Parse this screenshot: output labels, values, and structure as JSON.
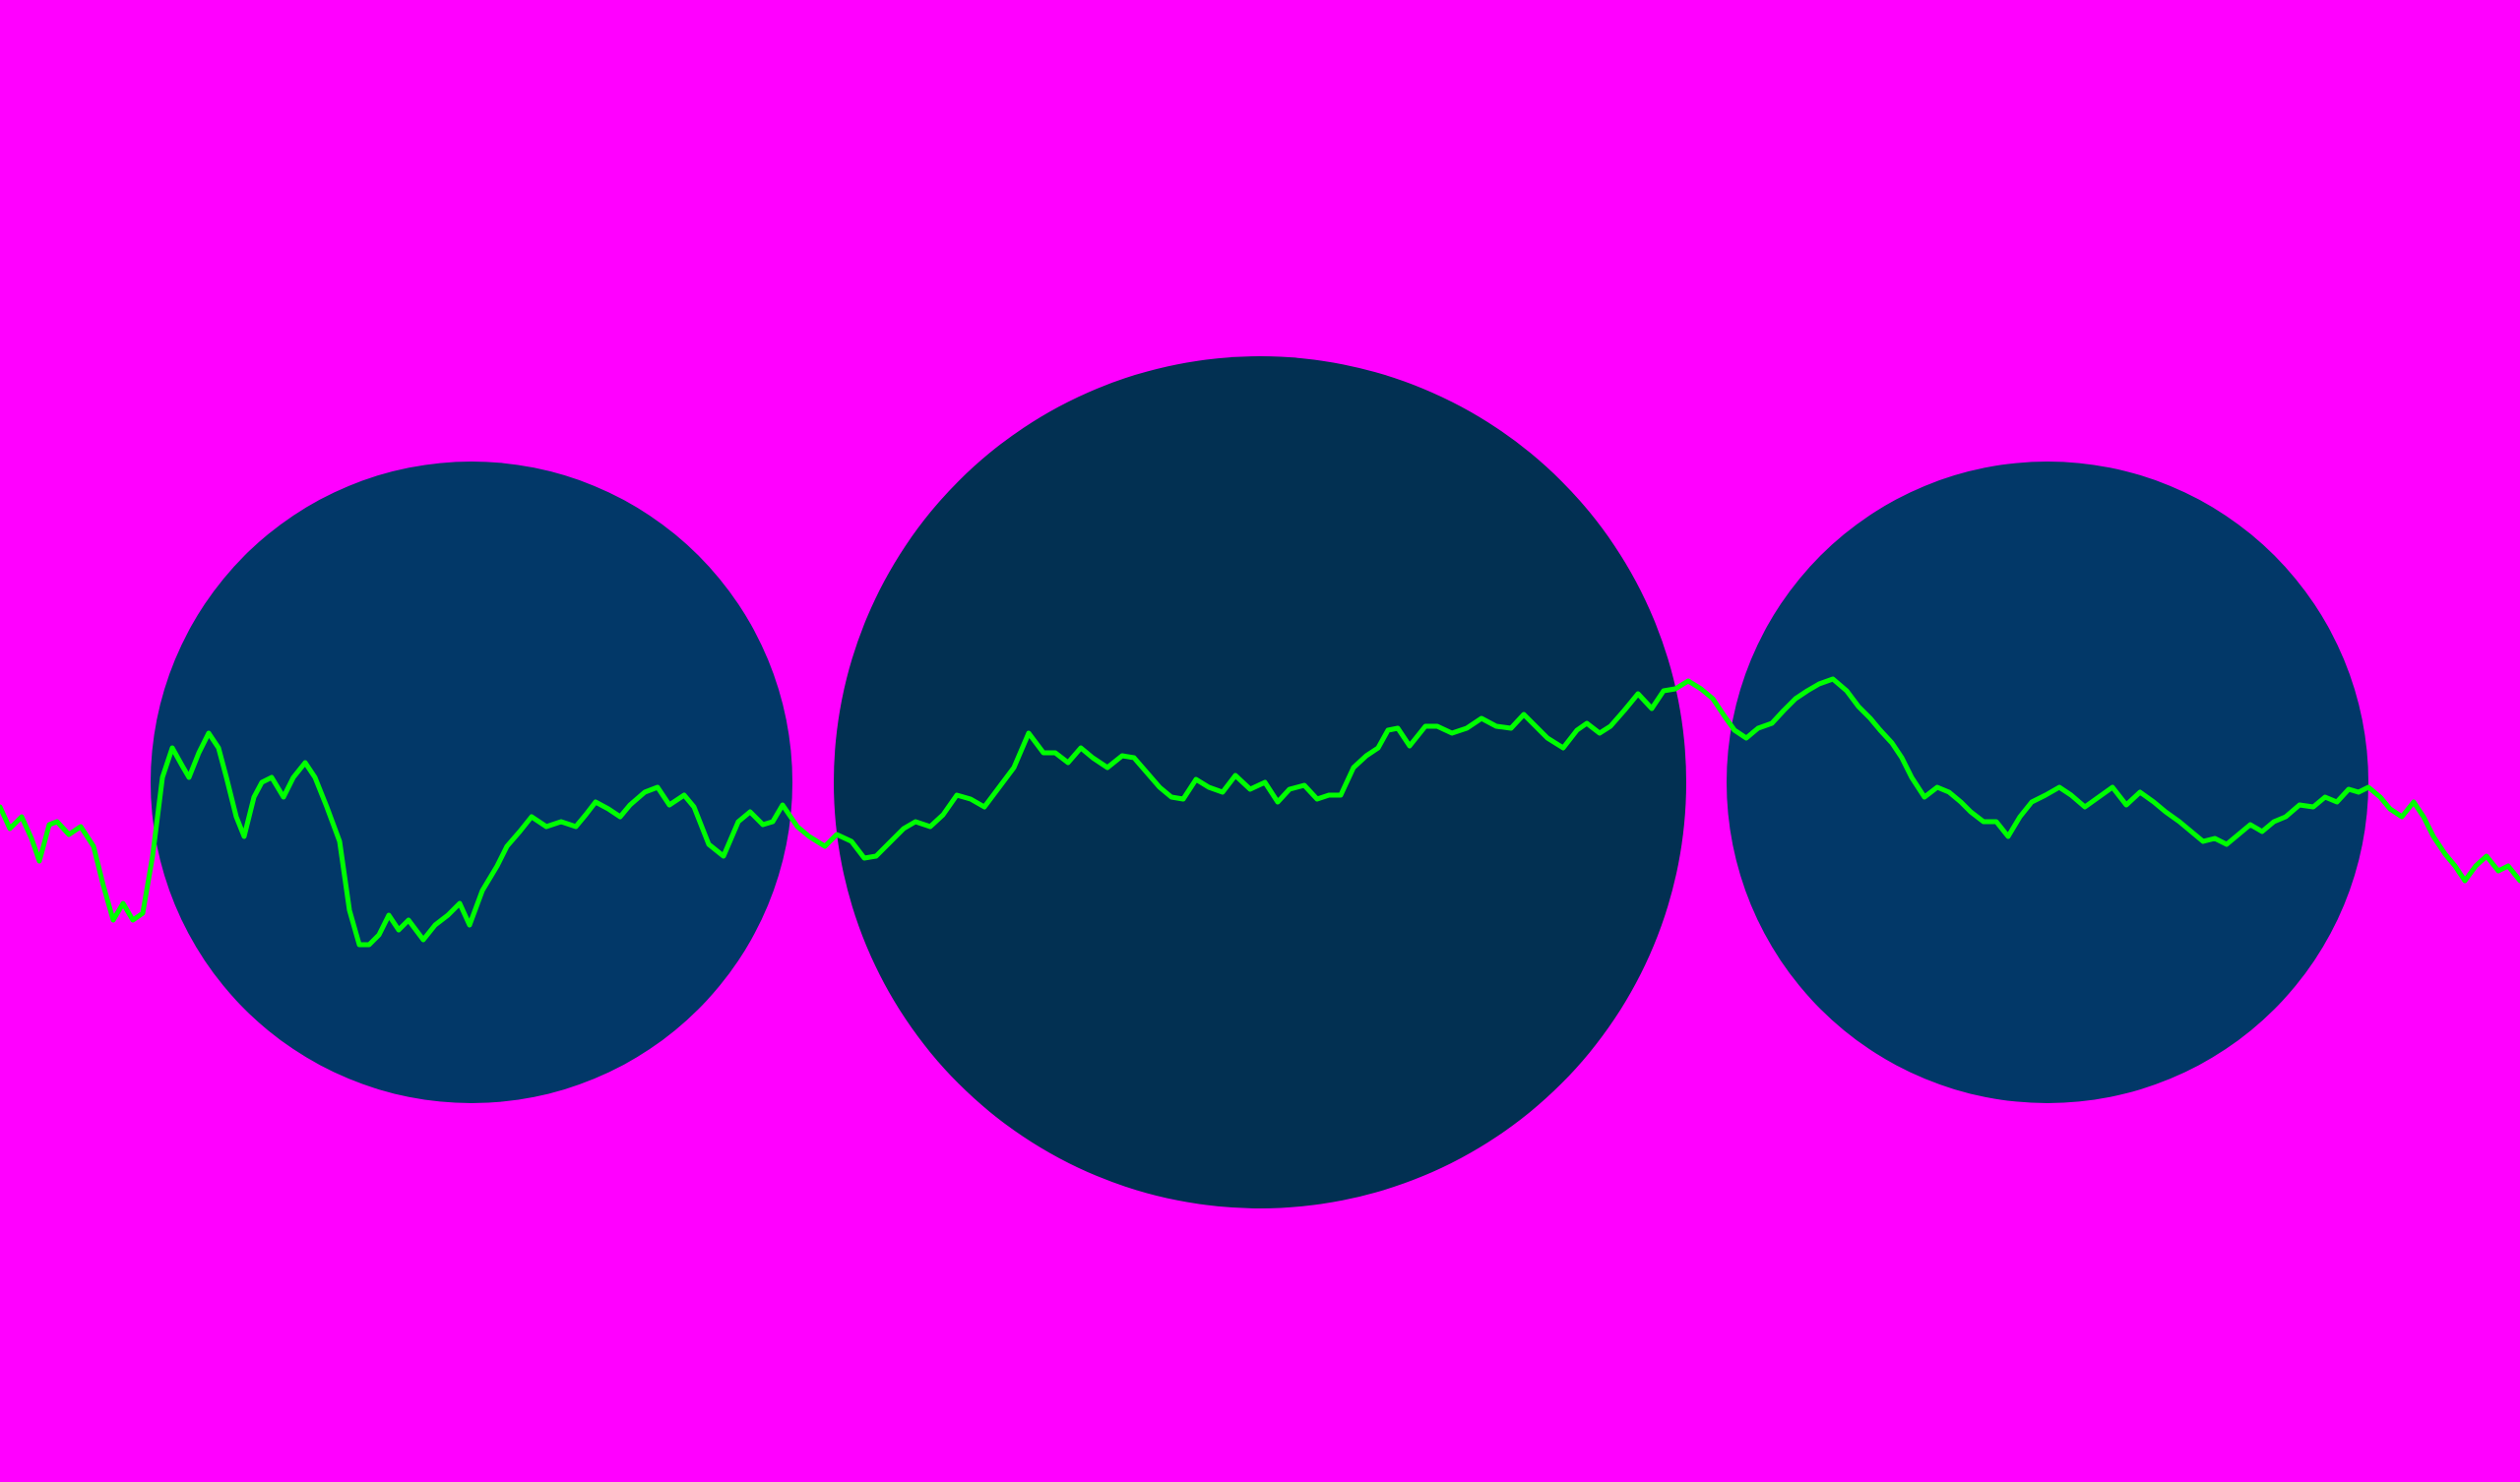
{
  "colors": {
    "background": "#ff00ff",
    "side_circle": "#023868",
    "center_circle": "#023052",
    "waveform": "#00ff00"
  },
  "scene": {
    "circles": [
      {
        "id": "left",
        "color_key": "side_circle"
      },
      {
        "id": "center",
        "color_key": "center_circle"
      },
      {
        "id": "right",
        "color_key": "side_circle"
      }
    ],
    "waveform": {
      "style": "jagged-line",
      "color_key": "waveform"
    }
  }
}
